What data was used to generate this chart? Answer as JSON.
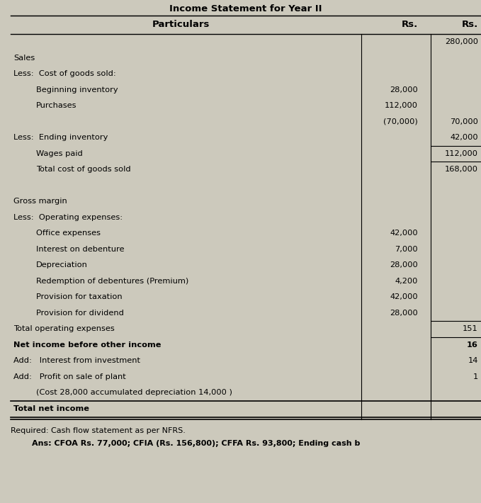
{
  "title": "Income Statement for Year II",
  "bg_color": "#ccc9bc",
  "rows": [
    {
      "indent": 0,
      "label": "Particulars",
      "col1": "Rs.",
      "col2": "Rs.",
      "bold": true,
      "is_header": true
    },
    {
      "indent": 0,
      "label": "",
      "col1": "",
      "col2": "280,000",
      "bold": false,
      "line_above_col2": false
    },
    {
      "indent": 0,
      "label": "Sales",
      "col1": "",
      "col2": "",
      "bold": false
    },
    {
      "indent": 0,
      "label": "Less:  Cost of goods sold:",
      "col1": "",
      "col2": "",
      "bold": false
    },
    {
      "indent": 1,
      "label": "Beginning inventory",
      "col1": "28,000",
      "col2": "",
      "bold": false
    },
    {
      "indent": 1,
      "label": "Purchases",
      "col1": "112,000",
      "col2": "",
      "bold": false
    },
    {
      "indent": 1,
      "label": "",
      "col1": "(70,000)",
      "col2": "70,000",
      "bold": false
    },
    {
      "indent": 0,
      "label": "Less:  Ending inventory",
      "col1": "",
      "col2": "42,000",
      "bold": false
    },
    {
      "indent": 1,
      "label": "Wages paid",
      "col1": "",
      "col2": "112,000",
      "bold": false,
      "line_above_col2": true
    },
    {
      "indent": 1,
      "label": "Total cost of goods sold",
      "col1": "",
      "col2": "168,000",
      "bold": false,
      "line_above_col2": true
    },
    {
      "indent": 0,
      "label": "",
      "col1": "",
      "col2": "",
      "bold": false
    },
    {
      "indent": 0,
      "label": "Gross margin",
      "col1": "",
      "col2": "",
      "bold": false
    },
    {
      "indent": 0,
      "label": "Less:  Operating expenses:",
      "col1": "",
      "col2": "",
      "bold": false
    },
    {
      "indent": 1,
      "label": "Office expenses",
      "col1": "42,000",
      "col2": "",
      "bold": false
    },
    {
      "indent": 1,
      "label": "Interest on debenture",
      "col1": "7,000",
      "col2": "",
      "bold": false
    },
    {
      "indent": 1,
      "label": "Depreciation",
      "col1": "28,000",
      "col2": "",
      "bold": false
    },
    {
      "indent": 1,
      "label": "Redemption of debentures (Premium)",
      "col1": "4,200",
      "col2": "",
      "bold": false
    },
    {
      "indent": 1,
      "label": "Provision for taxation",
      "col1": "42,000",
      "col2": "",
      "bold": false
    },
    {
      "indent": 1,
      "label": "Provision for dividend",
      "col1": "28,000",
      "col2": "",
      "bold": false
    },
    {
      "indent": 0,
      "label": "Total operating expenses",
      "col1": "",
      "col2": "151",
      "bold": false,
      "line_above_col2": true
    },
    {
      "indent": 0,
      "label": "Net income before other income",
      "col1": "",
      "col2": "16",
      "bold": true,
      "line_above_col2": true
    },
    {
      "indent": 0,
      "label": "Add:   Interest from investment",
      "col1": "",
      "col2": "14",
      "bold": false
    },
    {
      "indent": 0,
      "label": "Add:   Profit on sale of plant",
      "col1": "",
      "col2": "1",
      "bold": false
    },
    {
      "indent": 1,
      "label": "(Cost 28,000 accumulated depreciation 14,000 )",
      "col1": "",
      "col2": "",
      "bold": false
    },
    {
      "indent": 0,
      "label": "Total net income",
      "col1": "",
      "col2": "",
      "bold": true,
      "line_above_all": true,
      "double_line_below": true
    }
  ],
  "footer_line1": "Required: Cash flow statement as per NFRS.",
  "footer_line2": "Ans: CFOA Rs. 77,000; CFIA (Rs. 156,800); CFFA Rs. 93,800; Ending cash b"
}
